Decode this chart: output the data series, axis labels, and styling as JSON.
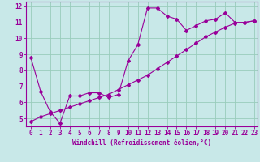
{
  "xlabel": "Windchill (Refroidissement éolien,°C)",
  "bg_color": "#c8e8e8",
  "line_color": "#990099",
  "grid_color": "#99ccbb",
  "xmin": 0,
  "xmax": 23,
  "ymin": 4.5,
  "ymax": 12.3,
  "yticks": [
    5,
    6,
    7,
    8,
    9,
    10,
    11,
    12
  ],
  "xticks": [
    0,
    1,
    2,
    3,
    4,
    5,
    6,
    7,
    8,
    9,
    10,
    11,
    12,
    13,
    14,
    15,
    16,
    17,
    18,
    19,
    20,
    21,
    22,
    23
  ],
  "line1_x": [
    0,
    1,
    2,
    3,
    4,
    5,
    6,
    7,
    8,
    9,
    10,
    11,
    12,
    13,
    14,
    15,
    16,
    17,
    18,
    19,
    20,
    21,
    22,
    23
  ],
  "line1_y": [
    8.8,
    6.7,
    5.4,
    4.7,
    6.4,
    6.4,
    6.6,
    6.6,
    6.3,
    6.5,
    8.6,
    9.6,
    11.9,
    11.9,
    11.4,
    11.2,
    10.5,
    10.8,
    11.1,
    11.2,
    11.6,
    11.0,
    11.0,
    11.1
  ],
  "line2_x": [
    0,
    1,
    2,
    3,
    4,
    5,
    6,
    7,
    8,
    9,
    10,
    11,
    12,
    13,
    14,
    15,
    16,
    17,
    18,
    19,
    20,
    21,
    22,
    23
  ],
  "line2_y": [
    4.8,
    5.1,
    5.3,
    5.5,
    5.7,
    5.9,
    6.1,
    6.3,
    6.5,
    6.8,
    7.1,
    7.4,
    7.7,
    8.1,
    8.5,
    8.9,
    9.3,
    9.7,
    10.1,
    10.4,
    10.7,
    10.95,
    11.0,
    11.1
  ],
  "tick_fontsize": 5.5,
  "xlabel_fontsize": 5.5
}
